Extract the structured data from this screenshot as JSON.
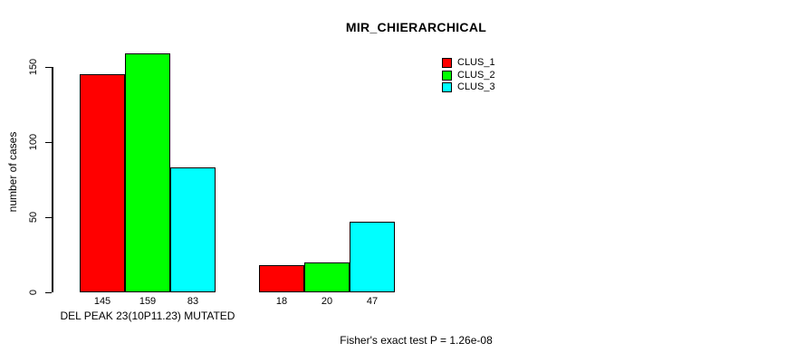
{
  "chart_data": {
    "type": "bar",
    "title": "MIR_CHIERARCHICAL",
    "ylabel": "number of cases",
    "xlabel": "",
    "ylim": [
      0,
      150
    ],
    "yticks": [
      0,
      50,
      100,
      150
    ],
    "grid": false,
    "legend_position": "top-center-right",
    "bar_value_labels_shown": true,
    "series": [
      {
        "name": "CLUS_1",
        "color": "#ff0000"
      },
      {
        "name": "CLUS_2",
        "color": "#00ff00"
      },
      {
        "name": "CLUS_3",
        "color": "#00ffff"
      }
    ],
    "groups": [
      {
        "label": "DEL PEAK 23(10P11.23) MUTATED",
        "values": [
          145,
          159,
          83
        ]
      },
      {
        "label": "",
        "values": [
          18,
          20,
          47
        ]
      }
    ],
    "annotation": "Fisher's exact test P = 1.26e-08"
  }
}
